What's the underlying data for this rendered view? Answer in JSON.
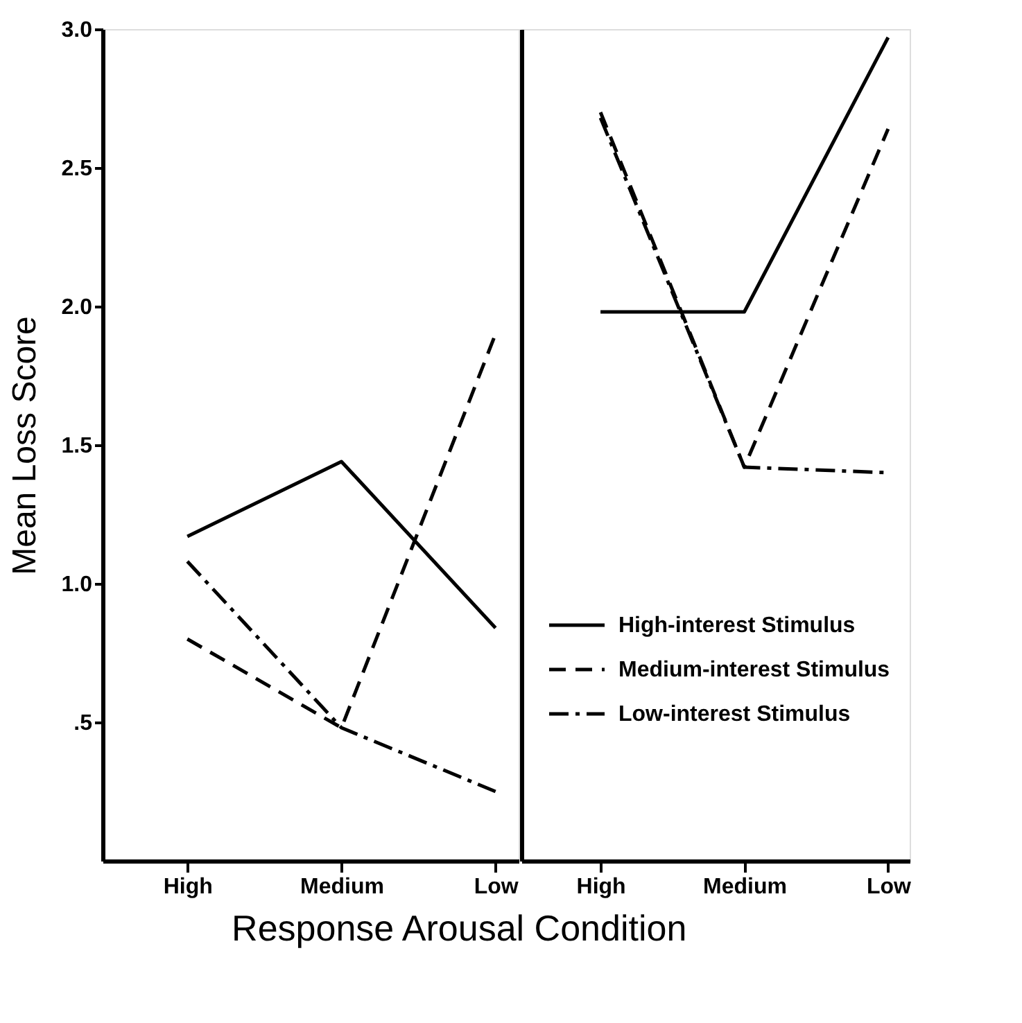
{
  "chart_data": [
    {
      "type": "line",
      "ylabel": "Mean Loss Score",
      "xlabel": "Response Arousal Condition",
      "categories": [
        "High",
        "Medium",
        "Low"
      ],
      "ylim": [
        0,
        3
      ],
      "yticks": [
        {
          "value": 0.5,
          "label": ".5"
        },
        {
          "value": 1,
          "label": "1.0"
        },
        1.5,
        {
          "value": 2,
          "label": "2.0"
        },
        2.5,
        {
          "value": 3,
          "label": "3.0"
        }
      ],
      "grid": false,
      "marker": "none",
      "series": [
        {
          "color": "#000000",
          "line_style": "solid",
          "values": [
            1.17,
            1.44,
            0.84
          ]
        },
        {
          "color": "#000000",
          "line_style": "dashed",
          "values": [
            0.8,
            0.48,
            1.9
          ]
        },
        {
          "color": "#000000",
          "line_style": "dashdot",
          "values": [
            1.08,
            0.48,
            0.25
          ]
        }
      ]
    },
    {
      "type": "line",
      "categories": [
        "High",
        "Medium",
        "Low"
      ],
      "ylim": [
        0,
        3
      ],
      "tick_labels": "x",
      "grid": false,
      "legend": "right",
      "marker": "none",
      "series": [
        {
          "name": "High-interest Stimulus",
          "color": "#000000",
          "line_style": "solid",
          "values": [
            1.98,
            1.98,
            2.97
          ]
        },
        {
          "name": "Medium-interest Stimulus",
          "color": "#000000",
          "line_style": "dashed",
          "values": [
            2.7,
            1.42,
            2.64
          ]
        },
        {
          "name": "Low-interest Stimulus",
          "color": "#000000",
          "line_style": "dashdot",
          "values": [
            2.68,
            1.42,
            1.4
          ]
        }
      ]
    }
  ]
}
